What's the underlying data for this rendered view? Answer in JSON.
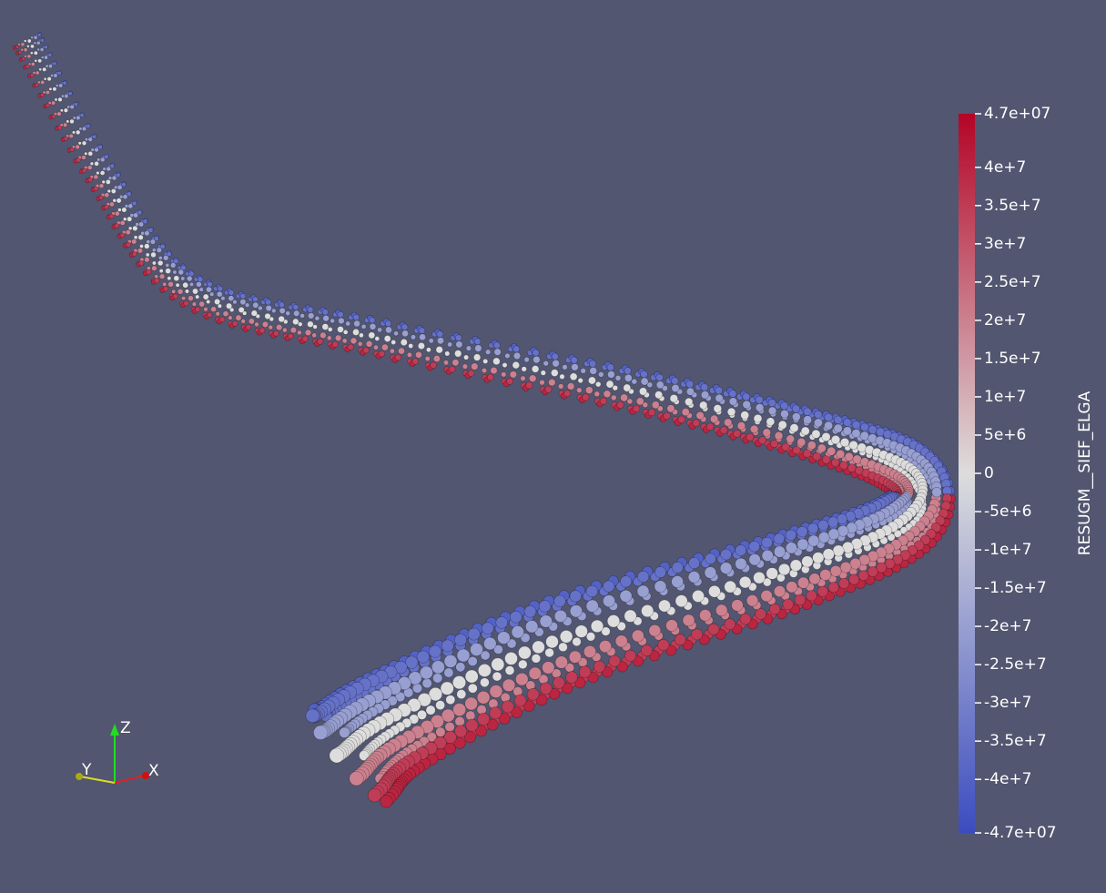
{
  "colorbar": {
    "title": "RESUGM__SIEF_ELGA",
    "range": [
      -47000000,
      47000000
    ],
    "colors": [
      "#3b4cc0",
      "#dddddd",
      "#b40426"
    ],
    "ticks": [
      {
        "value": 47000000,
        "label": "4.7e+07"
      },
      {
        "value": 40000000,
        "label": "4e+7"
      },
      {
        "value": 35000000,
        "label": "3.5e+7"
      },
      {
        "value": 30000000,
        "label": "3e+7"
      },
      {
        "value": 25000000,
        "label": "2.5e+7"
      },
      {
        "value": 20000000,
        "label": "2e+7"
      },
      {
        "value": 15000000,
        "label": "1.5e+7"
      },
      {
        "value": 10000000,
        "label": "1e+7"
      },
      {
        "value": 5000000,
        "label": "5e+6"
      },
      0,
      {
        "value": -5000000,
        "label": "-5e+6"
      },
      {
        "value": -10000000,
        "label": "-1e+7"
      },
      {
        "value": -15000000,
        "label": "-1.5e+7"
      },
      {
        "value": -20000000,
        "label": "-2e+7"
      },
      {
        "value": -25000000,
        "label": "-2.5e+7"
      },
      {
        "value": -30000000,
        "label": "-3e+7"
      },
      {
        "value": -35000000,
        "label": "-3.5e+7"
      },
      {
        "value": -40000000,
        "label": "-4e+7"
      },
      {
        "value": -47000000,
        "label": "-4.7e+07"
      }
    ]
  },
  "axes_triad": {
    "z": "Z",
    "y": "Y",
    "x": "X"
  }
}
